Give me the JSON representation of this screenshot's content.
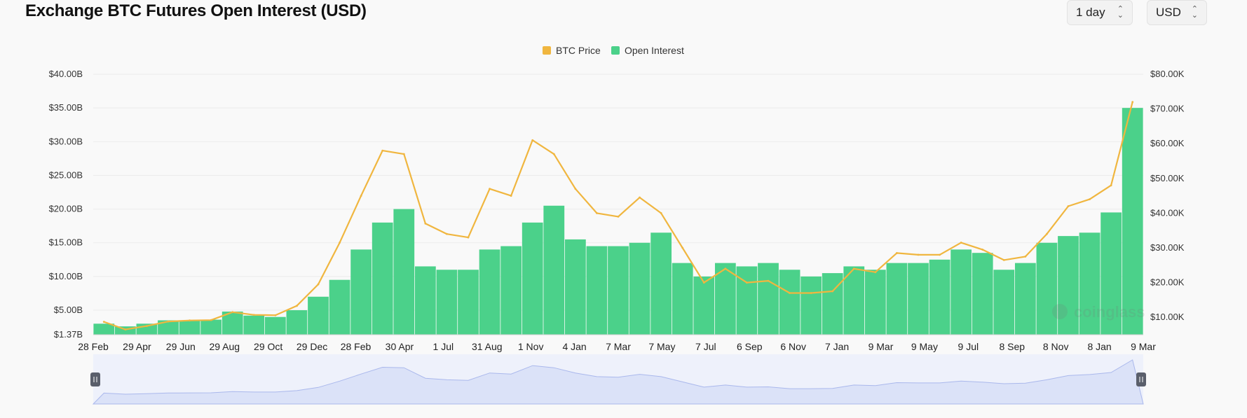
{
  "header": {
    "title": "Exchange BTC Futures Open Interest (USD)",
    "interval_select": "1 day",
    "currency_select": "USD"
  },
  "watermark": {
    "text": "coinglass"
  },
  "colors": {
    "price": "#f0b63f",
    "oi": "#4bd18a",
    "grid": "#ececec",
    "navigator_fill": "#dbe2f8",
    "navigator_line": "#aab8ec",
    "handle": "#5a5f6b"
  },
  "chart_data": {
    "type": "bar",
    "title": "Exchange BTC Futures Open Interest (USD)",
    "legend": {
      "placement": "top-center",
      "items": [
        {
          "name": "BTC Price",
          "color": "#f0b63f"
        },
        {
          "name": "Open Interest",
          "color": "#4bd18a"
        }
      ]
    },
    "x_tick_labels": [
      "28 Feb",
      "29 Apr",
      "29 Jun",
      "29 Aug",
      "29 Oct",
      "29 Dec",
      "28 Feb",
      "30 Apr",
      "1 Jul",
      "31 Aug",
      "1 Nov",
      "4 Jan",
      "7 Mar",
      "7 May",
      "7 Jul",
      "6 Sep",
      "6 Nov",
      "7 Jan",
      "9 Mar",
      "9 May",
      "9 Jul",
      "8 Sep",
      "8 Nov",
      "8 Jan",
      "9 Mar"
    ],
    "y_left": {
      "ylim": [
        1.37,
        40
      ],
      "unit": "billion USD",
      "tick_labels": [
        "$1.37B",
        "$5.00B",
        "$10.00B",
        "$15.00B",
        "$20.00B",
        "$25.00B",
        "$30.00B",
        "$35.00B",
        "$40.00B"
      ],
      "tick_values": [
        1.37,
        5,
        10,
        15,
        20,
        25,
        30,
        35,
        40
      ]
    },
    "y_right": {
      "ylim": [
        5,
        80
      ],
      "unit": "thousand USD",
      "tick_labels": [
        "$10.00K",
        "$20.00K",
        "$30.00K",
        "$40.00K",
        "$50.00K",
        "$60.00K",
        "$70.00K",
        "$80.00K"
      ],
      "tick_values": [
        10,
        20,
        30,
        40,
        50,
        60,
        70,
        80
      ]
    },
    "grid": true,
    "x": [
      "28 Feb",
      "29 Mar",
      "29 Apr",
      "29 May",
      "29 Jun",
      "29 Jul",
      "29 Aug",
      "29 Sep",
      "29 Oct",
      "29 Nov",
      "29 Dec",
      "29 Jan",
      "28 Feb",
      "30 Mar",
      "30 Apr",
      "31 May",
      "1 Jul",
      "1 Aug",
      "31 Aug",
      "1 Oct",
      "1 Nov",
      "3 Dec",
      "4 Jan",
      "4 Feb",
      "7 Mar",
      "7 Apr",
      "7 May",
      "7 Jun",
      "7 Jul",
      "7 Aug",
      "6 Sep",
      "6 Oct",
      "6 Nov",
      "7 Dec",
      "7 Jan",
      "7 Feb",
      "9 Mar",
      "9 Apr",
      "9 May",
      "9 Jun",
      "9 Jul",
      "9 Aug",
      "8 Sep",
      "8 Oct",
      "8 Nov",
      "8 Dec",
      "8 Jan",
      "8 Feb",
      "9 Mar"
    ],
    "series": [
      {
        "name": "Open Interest",
        "type": "bar",
        "axis": "left",
        "values": [
          3.0,
          2.6,
          3.0,
          3.5,
          3.5,
          3.6,
          4.8,
          4.2,
          4.0,
          5.0,
          7.0,
          9.5,
          14.0,
          18.0,
          20.0,
          11.5,
          11.0,
          11.0,
          14.0,
          14.5,
          18.0,
          20.5,
          15.5,
          14.5,
          14.5,
          15.0,
          16.5,
          12.0,
          10.0,
          12.0,
          11.5,
          12.0,
          11.0,
          10.0,
          10.5,
          11.5,
          11.0,
          12.0,
          12.0,
          12.5,
          14.0,
          13.5,
          11.0,
          12.0,
          15.0,
          16.0,
          16.5,
          19.5,
          35.0
        ]
      },
      {
        "name": "BTC Price",
        "type": "line",
        "axis": "right",
        "values": [
          8.7,
          6.5,
          7.5,
          8.8,
          9.1,
          9.2,
          11.5,
          10.7,
          10.6,
          13.3,
          19.5,
          31.5,
          45.0,
          58.0,
          57.0,
          37.0,
          34.0,
          33.0,
          47.0,
          45.0,
          61.0,
          57.0,
          47.0,
          40.0,
          39.0,
          44.5,
          40.0,
          30.0,
          20.0,
          24.0,
          20.0,
          20.5,
          17.0,
          17.0,
          17.5,
          24.0,
          23.0,
          28.5,
          28.0,
          28.0,
          31.5,
          29.5,
          26.5,
          27.5,
          34.0,
          42.0,
          44.0,
          48.0,
          72.0
        ]
      }
    ]
  }
}
